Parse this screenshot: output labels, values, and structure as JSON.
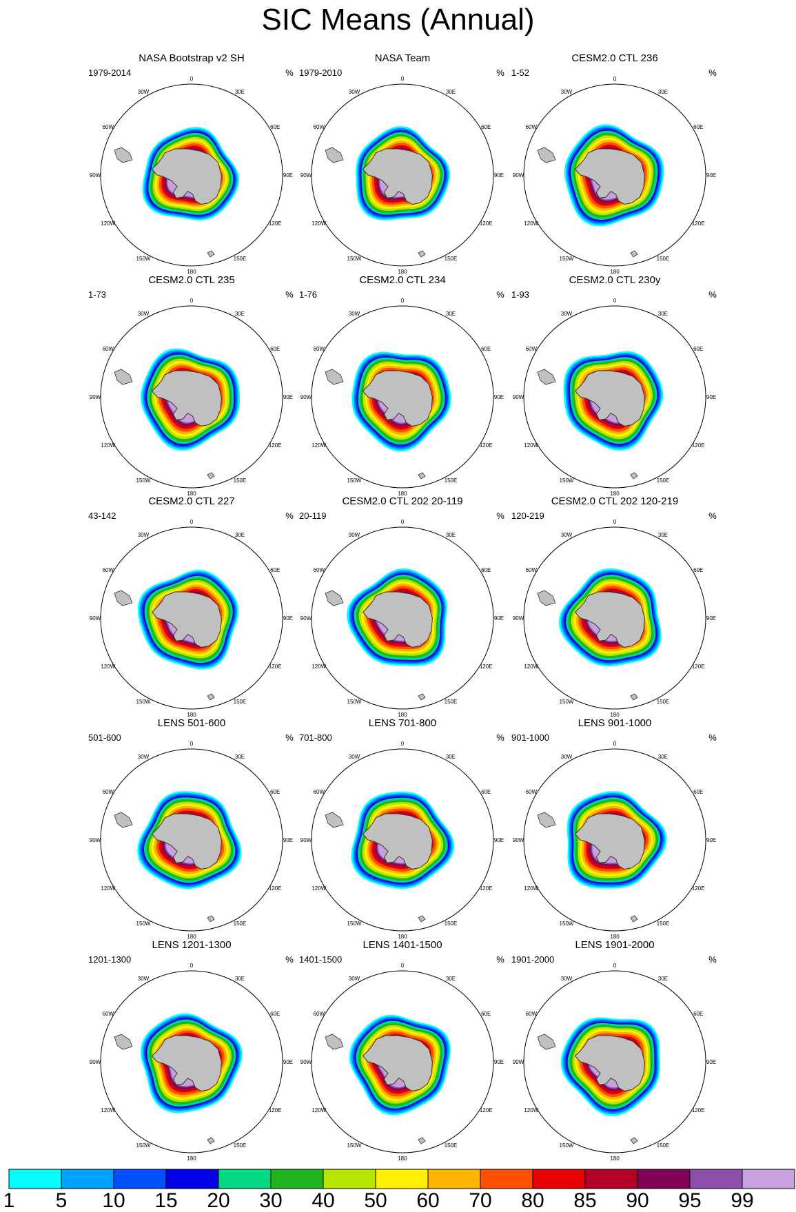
{
  "figure": {
    "title": "SIC Means (Annual)",
    "units": "%"
  },
  "chart_data": {
    "type": "polar_contour_grid",
    "variable": "Sea ice concentration (annual mean)",
    "projection": "South polar stereographic",
    "panels": [
      {
        "name": "NASA Bootstrap v2 SH",
        "years": "1979-2014",
        "units": "%"
      },
      {
        "name": "NASA Team",
        "years": "1979-2010",
        "units": "%"
      },
      {
        "name": "CESM2.0 CTL 236",
        "years": "1-52",
        "units": "%"
      },
      {
        "name": "CESM2.0 CTL 235",
        "years": "1-73",
        "units": "%"
      },
      {
        "name": "CESM2.0 CTL 234",
        "years": "1-76",
        "units": "%"
      },
      {
        "name": "CESM2.0 CTL 230y",
        "years": "1-93",
        "units": "%"
      },
      {
        "name": "CESM2.0 CTL 227",
        "years": "43-142",
        "units": "%"
      },
      {
        "name": "CESM2.0 CTL 202 20-119",
        "years": "20-119",
        "units": "%"
      },
      {
        "name": "CESM2.0 CTL 202 120-219",
        "years": "120-219",
        "units": "%"
      },
      {
        "name": "LENS 501-600",
        "years": "501-600",
        "units": "%"
      },
      {
        "name": "LENS 701-800",
        "years": "701-800",
        "units": "%"
      },
      {
        "name": "LENS 901-1000",
        "years": "901-1000",
        "units": "%"
      },
      {
        "name": "LENS 1201-1300",
        "years": "1201-1300",
        "units": "%"
      },
      {
        "name": "LENS 1401-1500",
        "years": "1401-1500",
        "units": "%"
      },
      {
        "name": "LENS 1901-2000",
        "years": "1901-2000",
        "units": "%"
      }
    ],
    "longitude_labels": [
      "0",
      "30E",
      "60E",
      "90E",
      "120E",
      "150E",
      "180",
      "150W",
      "120W",
      "90W",
      "60W",
      "30W"
    ],
    "colorbar": {
      "levels": [
        "1",
        "5",
        "10",
        "15",
        "20",
        "30",
        "40",
        "50",
        "60",
        "70",
        "80",
        "85",
        "90",
        "95",
        "99"
      ],
      "colors": [
        "#00ffff",
        "#00a0ff",
        "#0050ff",
        "#0000e6",
        "#00d882",
        "#20b41e",
        "#b4e600",
        "#fff000",
        "#ffb400",
        "#ff5000",
        "#e60000",
        "#b40028",
        "#820055",
        "#8c50aa",
        "#c8a0dc"
      ]
    }
  }
}
